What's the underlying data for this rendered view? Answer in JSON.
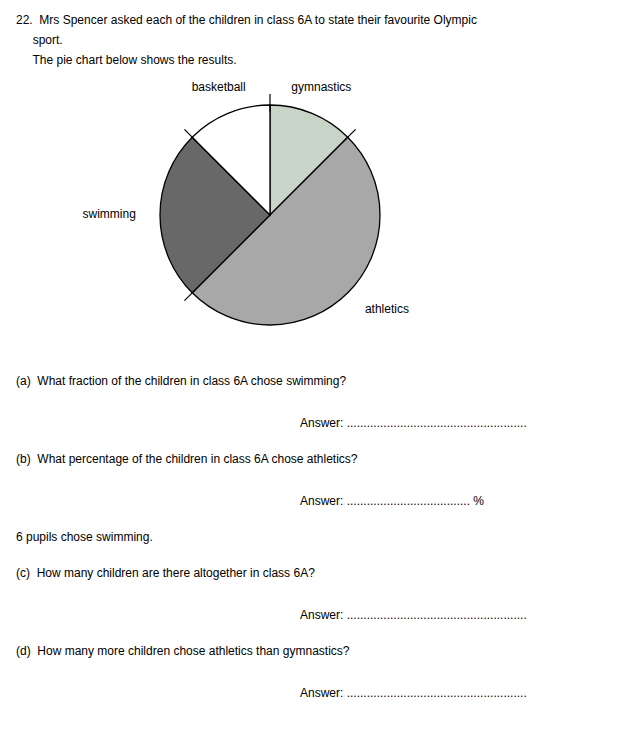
{
  "chart_data": {
    "type": "pie",
    "title": [
      "22.  Mrs Spencer asked each of the children in class 6A to state their favourite Olympic",
      "     sport.",
      "     The pie chart below shows the results."
    ],
    "categories": [
      "gymnastics",
      "athletics",
      "swimming",
      "basketball"
    ],
    "values": [
      45.0,
      180.0,
      90.0,
      45.0
    ],
    "colors": [
      "#c8d4c8",
      "#a8a8a8",
      "#686868",
      "#ffffff"
    ],
    "annotations": [
      {
        "text": "(a)  What fraction of the children in class 6A chose swimming?",
        "answer": "Answer: ......................................................"
      },
      {
        "text": "(b)  What percentage of the children in class 6A chose athletics?",
        "answer": "Answer: ..................................... %"
      },
      {
        "text": "6 pupils chose swimming."
      },
      {
        "text": "(c)  How many children are there altogether in class 6A?",
        "answer": "Answer: ......................................................"
      },
      {
        "text": "(d)  How many more children chose athletics than gymnastics?",
        "answer": "Answer: ......................................................"
      }
    ]
  }
}
